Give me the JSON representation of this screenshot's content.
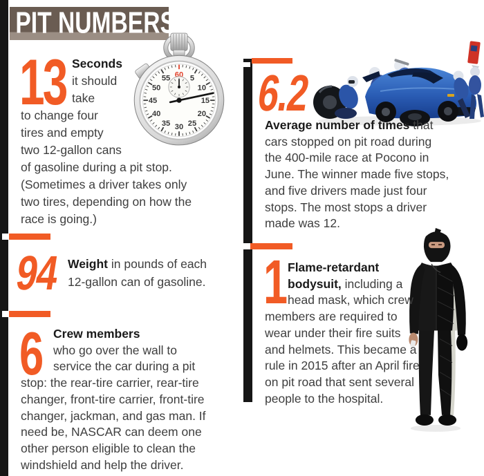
{
  "page": {
    "accent": "#F15B25",
    "bar_black": "#161616",
    "text_color": "#3E3E3E",
    "header_bg": "#6A5C52",
    "header_bg_light": "#9B8E84"
  },
  "header": {
    "title": "PIT NUMBERS"
  },
  "stats": {
    "seconds": {
      "number": "13",
      "lines": [
        {
          "b": "Seconds",
          "r": "",
          "indent": true
        },
        {
          "b": "",
          "r": "it should",
          "indent": true
        },
        {
          "b": "",
          "r": "take",
          "indent": true
        },
        {
          "b": "",
          "r": "to change four",
          "indent": false
        },
        {
          "b": "",
          "r": "tires and empty",
          "indent": false
        },
        {
          "b": "",
          "r": "two 12-gallon cans",
          "indent": false
        },
        {
          "b": "",
          "r": "of gasoline during a pit stop.",
          "indent": false
        },
        {
          "b": "",
          "r": "(Sometimes a driver takes only",
          "indent": false
        },
        {
          "b": "",
          "r": "two tires, depending on how the",
          "indent": false
        },
        {
          "b": "",
          "r": "race is going.)",
          "indent": false
        }
      ]
    },
    "weight": {
      "number": "94",
      "lines": [
        {
          "b": "Weight",
          "r": " in pounds of each",
          "indent": false
        },
        {
          "b": "",
          "r": "12-gallon can of gasoline.",
          "indent": false
        }
      ]
    },
    "crew": {
      "number": "6",
      "lines": [
        {
          "b": "Crew members",
          "r": "",
          "indent": true
        },
        {
          "b": "",
          "r": "who go over the wall to",
          "indent": true
        },
        {
          "b": "",
          "r": "service the car during a pit",
          "indent": true
        },
        {
          "b": "",
          "r": "stop: the rear-tire carrier, rear-tire",
          "indent": false
        },
        {
          "b": "",
          "r": "changer, front-tire carrier, front-tire",
          "indent": false
        },
        {
          "b": "",
          "r": "changer, jackman, and gas man. If",
          "indent": false
        },
        {
          "b": "",
          "r": "need be, NASCAR can deem one",
          "indent": false
        },
        {
          "b": "",
          "r": "other person eligible to clean the",
          "indent": false
        },
        {
          "b": "",
          "r": "windshield and help the driver.",
          "indent": false
        }
      ]
    },
    "stops": {
      "number": "6.2",
      "lines": [
        {
          "b": "Average number of times",
          "r": " that",
          "indent": false
        },
        {
          "b": "",
          "r": "cars stopped on pit road during",
          "indent": false
        },
        {
          "b": "",
          "r": "the 400-mile race at Pocono in",
          "indent": false
        },
        {
          "b": "",
          "r": "June. The winner made five stops,",
          "indent": false
        },
        {
          "b": "",
          "r": "and five drivers made just four",
          "indent": false
        },
        {
          "b": "",
          "r": "stops. The most stops a driver",
          "indent": false
        },
        {
          "b": "",
          "r": "made was 12.",
          "indent": false
        }
      ]
    },
    "bodysuit": {
      "number": "1",
      "lines": [
        {
          "b": "Flame-retardant",
          "r": "",
          "indent": true
        },
        {
          "b": "bodysuit,",
          "r": " including a",
          "indent": true
        },
        {
          "b": "",
          "r": "head mask, which crew",
          "indent": true
        },
        {
          "b": "",
          "r": "members are required to",
          "indent": false
        },
        {
          "b": "",
          "r": "wear under their fire suits",
          "indent": false
        },
        {
          "b": "",
          "r": "and helmets. This became a",
          "indent": false
        },
        {
          "b": "",
          "r": "rule in 2015 after an April fire",
          "indent": false
        },
        {
          "b": "",
          "r": "on pit road that sent several",
          "indent": false
        },
        {
          "b": "",
          "r": "people to the hospital.",
          "indent": false
        }
      ]
    }
  },
  "stopwatch": {
    "dial": [
      "60",
      "5",
      "10",
      "15",
      "20",
      "25",
      "30",
      "35",
      "40",
      "45",
      "50",
      "55"
    ],
    "hand_seconds": 13,
    "top_number_color": "#E2422B"
  },
  "images": {
    "stopwatch": "chrome stopwatch, hand at 13 seconds",
    "pitcrew": "pit crew servicing blue stock car, gas man holding red fuel can",
    "bodysuit": "crew member wearing black flame-retardant bodysuit and head mask"
  }
}
